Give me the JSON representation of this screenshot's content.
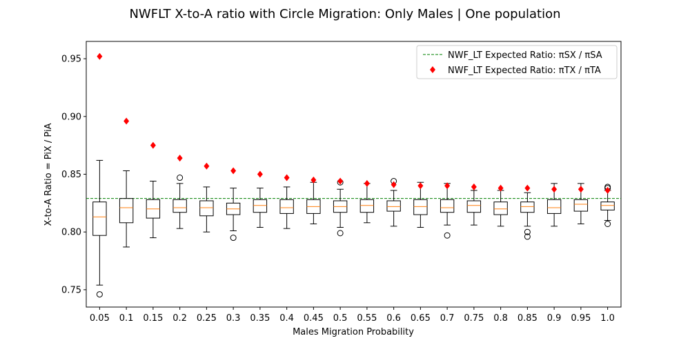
{
  "chart_data": {
    "type": "box",
    "title": "NWFLT X-to-A ratio with Circle Migration: Only Males | One population",
    "xlabel": "Males Migration Probability",
    "ylabel": "X-to-A Ratio = PiX / PiA",
    "ylim": [
      0.735,
      0.965
    ],
    "yticks": [
      "0.75",
      "0.80",
      "0.85",
      "0.90",
      "0.95"
    ],
    "categories": [
      "0.05",
      "0.1",
      "0.15",
      "0.2",
      "0.25",
      "0.3",
      "0.35",
      "0.4",
      "0.45",
      "0.5",
      "0.55",
      "0.6",
      "0.65",
      "0.7",
      "0.75",
      "0.8",
      "0.85",
      "0.9",
      "0.95",
      "1.0"
    ],
    "boxes": [
      {
        "whislo": 0.754,
        "q1": 0.797,
        "med": 0.813,
        "q3": 0.826,
        "whishi": 0.862,
        "fliers": [
          0.746
        ]
      },
      {
        "whislo": 0.787,
        "q1": 0.808,
        "med": 0.821,
        "q3": 0.829,
        "whishi": 0.853,
        "fliers": []
      },
      {
        "whislo": 0.795,
        "q1": 0.812,
        "med": 0.82,
        "q3": 0.828,
        "whishi": 0.844,
        "fliers": []
      },
      {
        "whislo": 0.803,
        "q1": 0.817,
        "med": 0.821,
        "q3": 0.828,
        "whishi": 0.842,
        "fliers": [
          0.847
        ]
      },
      {
        "whislo": 0.8,
        "q1": 0.814,
        "med": 0.821,
        "q3": 0.827,
        "whishi": 0.839,
        "fliers": []
      },
      {
        "whislo": 0.801,
        "q1": 0.815,
        "med": 0.82,
        "q3": 0.825,
        "whishi": 0.838,
        "fliers": [
          0.795
        ]
      },
      {
        "whislo": 0.804,
        "q1": 0.817,
        "med": 0.823,
        "q3": 0.828,
        "whishi": 0.838,
        "fliers": []
      },
      {
        "whislo": 0.803,
        "q1": 0.816,
        "med": 0.821,
        "q3": 0.828,
        "whishi": 0.839,
        "fliers": []
      },
      {
        "whislo": 0.807,
        "q1": 0.816,
        "med": 0.822,
        "q3": 0.828,
        "whishi": 0.843,
        "fliers": []
      },
      {
        "whislo": 0.804,
        "q1": 0.817,
        "med": 0.822,
        "q3": 0.827,
        "whishi": 0.837,
        "fliers": [
          0.799,
          0.843
        ]
      },
      {
        "whislo": 0.808,
        "q1": 0.817,
        "med": 0.823,
        "q3": 0.828,
        "whishi": 0.842,
        "fliers": []
      },
      {
        "whislo": 0.805,
        "q1": 0.818,
        "med": 0.822,
        "q3": 0.827,
        "whishi": 0.836,
        "fliers": [
          0.844
        ]
      },
      {
        "whislo": 0.804,
        "q1": 0.815,
        "med": 0.822,
        "q3": 0.828,
        "whishi": 0.843,
        "fliers": []
      },
      {
        "whislo": 0.806,
        "q1": 0.817,
        "med": 0.821,
        "q3": 0.828,
        "whishi": 0.842,
        "fliers": [
          0.797
        ]
      },
      {
        "whislo": 0.806,
        "q1": 0.817,
        "med": 0.823,
        "q3": 0.827,
        "whishi": 0.836,
        "fliers": []
      },
      {
        "whislo": 0.805,
        "q1": 0.815,
        "med": 0.82,
        "q3": 0.826,
        "whishi": 0.836,
        "fliers": []
      },
      {
        "whislo": 0.805,
        "q1": 0.817,
        "med": 0.822,
        "q3": 0.826,
        "whishi": 0.834,
        "fliers": [
          0.8,
          0.796
        ]
      },
      {
        "whislo": 0.805,
        "q1": 0.816,
        "med": 0.821,
        "q3": 0.828,
        "whishi": 0.842,
        "fliers": []
      },
      {
        "whislo": 0.807,
        "q1": 0.818,
        "med": 0.824,
        "q3": 0.828,
        "whishi": 0.842,
        "fliers": []
      },
      {
        "whislo": 0.81,
        "q1": 0.819,
        "med": 0.823,
        "q3": 0.826,
        "whishi": 0.836,
        "fliers": [
          0.807,
          0.839,
          0.838
        ]
      }
    ],
    "expected_sx_sa": 0.829,
    "expected_tx_ta": [
      0.952,
      0.896,
      0.875,
      0.864,
      0.857,
      0.853,
      0.85,
      0.847,
      0.845,
      0.844,
      0.842,
      0.841,
      0.84,
      0.84,
      0.839,
      0.838,
      0.838,
      0.837,
      0.837,
      0.836
    ],
    "legend": {
      "location": "upper right",
      "entries": [
        "NWF_LT Expected Ratio: πSX / πSA",
        "NWF_LT Expected Ratio: πTX / πTA"
      ]
    },
    "colors": {
      "box": "#000000",
      "median": "#ff7f0e",
      "expected_line": "#008000",
      "expected_marker": "#ff0000"
    }
  }
}
